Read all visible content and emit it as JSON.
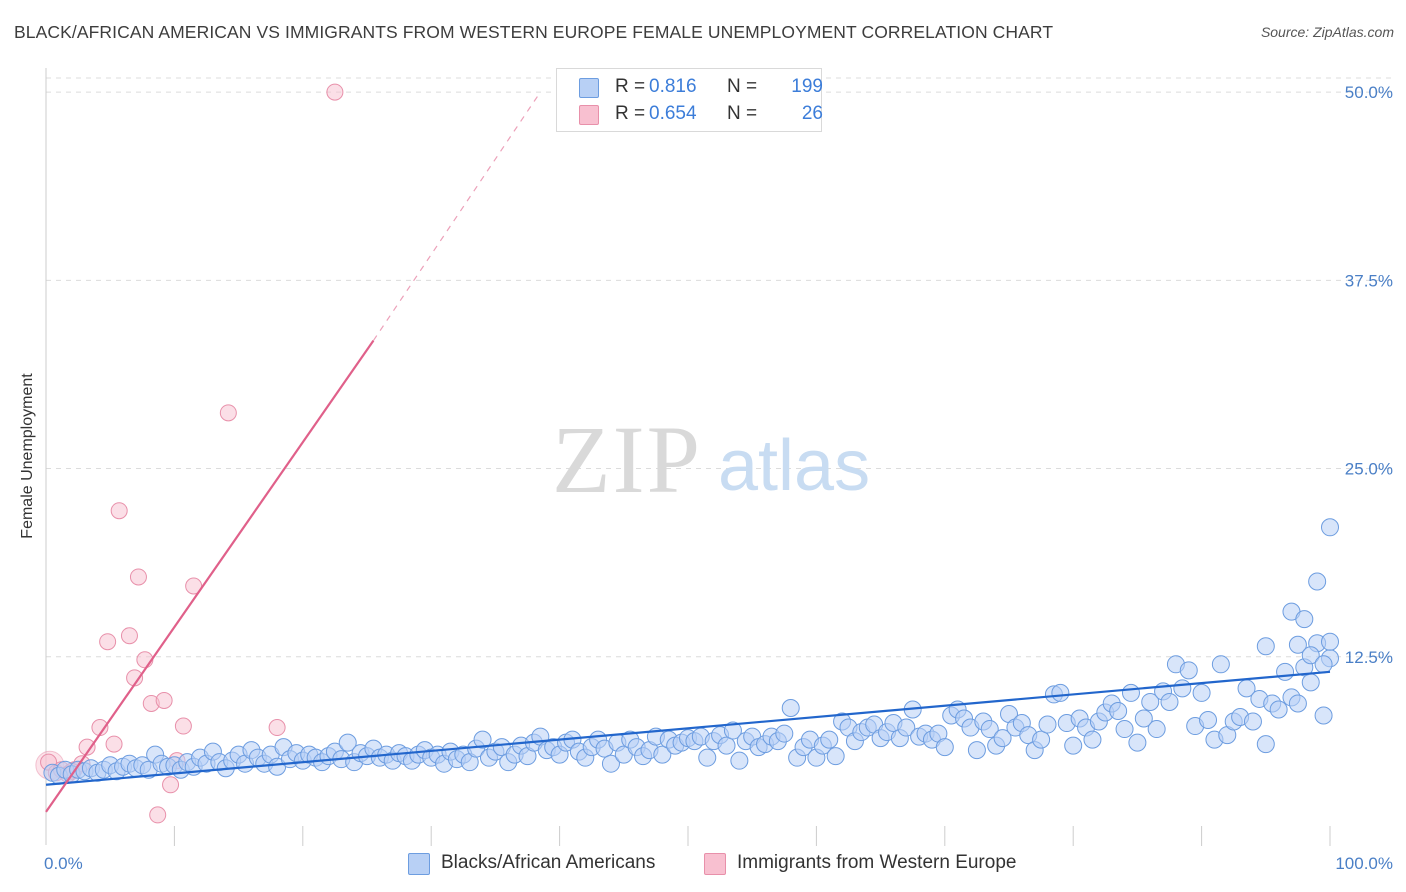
{
  "header": {
    "title": "BLACK/AFRICAN AMERICAN VS IMMIGRANTS FROM WESTERN EUROPE FEMALE UNEMPLOYMENT CORRELATION CHART",
    "source": "Source: ZipAtlas.com"
  },
  "watermark": {
    "zip": "ZIP",
    "atlas": "atlas"
  },
  "legend": {
    "series1": {
      "r_label": "R =",
      "r_value": "0.816",
      "n_label": "N =",
      "n_value": "199"
    },
    "series2": {
      "r_label": "R =",
      "r_value": "0.654",
      "n_label": "N =",
      "n_value": "26"
    }
  },
  "bottom_legend": {
    "series1": "Blacks/African Americans",
    "series2": "Immigrants from Western Europe"
  },
  "colors": {
    "blue_fill": "#b8d0f5",
    "blue_stroke": "#6d9de0",
    "blue_line": "#2266cc",
    "pink_fill": "#f8c0d0",
    "pink_stroke": "#e890aa",
    "pink_line": "#e0608a",
    "tick_text": "#4a7fc6",
    "grid": "#dcdcdc"
  },
  "chart_data": {
    "type": "scatter",
    "title": "BLACK/AFRICAN AMERICAN VS IMMIGRANTS FROM WESTERN EUROPE FEMALE UNEMPLOYMENT CORRELATION CHART",
    "xlabel": "",
    "ylabel": "Female Unemployment",
    "xlim": [
      0,
      100
    ],
    "ylim": [
      0,
      52
    ],
    "x_tick_labels": [
      "0.0%",
      "100.0%"
    ],
    "y_ticks": [
      12.5,
      25.0,
      37.5,
      50.0
    ],
    "y_tick_labels": [
      "12.5%",
      "25.0%",
      "37.5%",
      "50.0%"
    ],
    "grid": true,
    "series": [
      {
        "name": "Blacks/African Americans",
        "color": "#6d9de0",
        "R": 0.816,
        "N": 199,
        "trend": {
          "x": [
            0,
            100
          ],
          "y": [
            4.0,
            11.5
          ]
        },
        "points": [
          [
            0.5,
            4.8
          ],
          [
            1,
            4.6
          ],
          [
            1.5,
            5.0
          ],
          [
            2,
            4.7
          ],
          [
            2.5,
            5.0
          ],
          [
            3,
            4.9
          ],
          [
            3.5,
            5.1
          ],
          [
            4,
            4.8
          ],
          [
            4.5,
            5.0
          ],
          [
            5,
            5.3
          ],
          [
            5.5,
            4.9
          ],
          [
            6,
            5.2
          ],
          [
            6.5,
            5.4
          ],
          [
            7,
            5.1
          ],
          [
            7.5,
            5.3
          ],
          [
            8,
            5.0
          ],
          [
            8.5,
            6.0
          ],
          [
            9,
            5.4
          ],
          [
            9.5,
            5.2
          ],
          [
            10,
            5.3
          ],
          [
            10.5,
            5.0
          ],
          [
            11,
            5.5
          ],
          [
            11.5,
            5.2
          ],
          [
            12,
            5.8
          ],
          [
            12.5,
            5.4
          ],
          [
            13,
            6.2
          ],
          [
            13.5,
            5.5
          ],
          [
            14,
            5.1
          ],
          [
            14.5,
            5.6
          ],
          [
            15,
            6.0
          ],
          [
            15.5,
            5.4
          ],
          [
            16,
            6.3
          ],
          [
            16.5,
            5.8
          ],
          [
            17,
            5.4
          ],
          [
            17.5,
            6.0
          ],
          [
            18,
            5.2
          ],
          [
            18.5,
            6.5
          ],
          [
            19,
            5.7
          ],
          [
            19.5,
            6.1
          ],
          [
            20,
            5.6
          ],
          [
            20.5,
            6.0
          ],
          [
            21,
            5.8
          ],
          [
            21.5,
            5.5
          ],
          [
            22,
            5.9
          ],
          [
            22.5,
            6.2
          ],
          [
            23,
            5.7
          ],
          [
            23.5,
            6.8
          ],
          [
            24,
            5.5
          ],
          [
            24.5,
            6.1
          ],
          [
            25,
            5.9
          ],
          [
            25.5,
            6.4
          ],
          [
            26,
            5.8
          ],
          [
            26.5,
            6.0
          ],
          [
            27,
            5.6
          ],
          [
            27.5,
            6.1
          ],
          [
            28,
            5.9
          ],
          [
            28.5,
            5.6
          ],
          [
            29,
            6.0
          ],
          [
            29.5,
            6.3
          ],
          [
            30,
            5.8
          ],
          [
            30.5,
            6.0
          ],
          [
            31,
            5.4
          ],
          [
            31.5,
            6.2
          ],
          [
            32,
            5.7
          ],
          [
            32.5,
            6.0
          ],
          [
            33,
            5.5
          ],
          [
            33.5,
            6.4
          ],
          [
            34,
            7.0
          ],
          [
            34.5,
            5.8
          ],
          [
            35,
            6.2
          ],
          [
            35.5,
            6.5
          ],
          [
            36,
            5.5
          ],
          [
            36.5,
            6.0
          ],
          [
            37,
            6.6
          ],
          [
            37.5,
            5.9
          ],
          [
            38,
            6.8
          ],
          [
            38.5,
            7.2
          ],
          [
            39,
            6.3
          ],
          [
            39.5,
            6.5
          ],
          [
            40,
            6.0
          ],
          [
            40.5,
            6.8
          ],
          [
            41,
            7.0
          ],
          [
            41.5,
            6.2
          ],
          [
            42,
            5.8
          ],
          [
            42.5,
            6.5
          ],
          [
            43,
            7.0
          ],
          [
            43.5,
            6.4
          ],
          [
            44,
            5.4
          ],
          [
            44.5,
            6.8
          ],
          [
            45,
            6.0
          ],
          [
            45.5,
            7.0
          ],
          [
            46,
            6.5
          ],
          [
            46.5,
            5.9
          ],
          [
            47,
            6.3
          ],
          [
            47.5,
            7.2
          ],
          [
            48,
            6.0
          ],
          [
            48.5,
            7.0
          ],
          [
            49,
            6.6
          ],
          [
            49.5,
            6.8
          ],
          [
            50,
            7.1
          ],
          [
            50.5,
            6.9
          ],
          [
            51,
            7.2
          ],
          [
            51.5,
            5.8
          ],
          [
            52,
            6.9
          ],
          [
            52.5,
            7.3
          ],
          [
            53,
            6.6
          ],
          [
            53.5,
            7.6
          ],
          [
            54,
            5.6
          ],
          [
            54.5,
            6.9
          ],
          [
            55,
            7.2
          ],
          [
            55.5,
            6.5
          ],
          [
            56,
            6.7
          ],
          [
            56.5,
            7.2
          ],
          [
            57,
            6.9
          ],
          [
            57.5,
            7.4
          ],
          [
            58,
            9.1
          ],
          [
            58.5,
            5.8
          ],
          [
            59,
            6.5
          ],
          [
            59.5,
            7.0
          ],
          [
            60,
            5.8
          ],
          [
            60.5,
            6.6
          ],
          [
            61,
            7.0
          ],
          [
            61.5,
            5.9
          ],
          [
            62,
            8.2
          ],
          [
            62.5,
            7.8
          ],
          [
            63,
            6.9
          ],
          [
            63.5,
            7.5
          ],
          [
            64,
            7.8
          ],
          [
            64.5,
            8.0
          ],
          [
            65,
            7.1
          ],
          [
            65.5,
            7.5
          ],
          [
            66,
            8.1
          ],
          [
            66.5,
            7.1
          ],
          [
            67,
            7.8
          ],
          [
            67.5,
            9.0
          ],
          [
            68,
            7.2
          ],
          [
            68.5,
            7.4
          ],
          [
            69,
            7.0
          ],
          [
            69.5,
            7.4
          ],
          [
            70,
            6.5
          ],
          [
            70.5,
            8.6
          ],
          [
            71,
            9.0
          ],
          [
            71.5,
            8.4
          ],
          [
            72,
            7.8
          ],
          [
            72.5,
            6.3
          ],
          [
            73,
            8.2
          ],
          [
            73.5,
            7.7
          ],
          [
            74,
            6.6
          ],
          [
            74.5,
            7.1
          ],
          [
            75,
            8.7
          ],
          [
            75.5,
            7.8
          ],
          [
            76,
            8.1
          ],
          [
            76.5,
            7.3
          ],
          [
            77,
            6.3
          ],
          [
            77.5,
            7.0
          ],
          [
            78,
            8.0
          ],
          [
            78.5,
            10.0
          ],
          [
            79,
            10.1
          ],
          [
            79.5,
            8.1
          ],
          [
            80,
            6.6
          ],
          [
            80.5,
            8.4
          ],
          [
            81,
            7.8
          ],
          [
            81.5,
            7.0
          ],
          [
            82,
            8.2
          ],
          [
            82.5,
            8.8
          ],
          [
            83,
            9.4
          ],
          [
            83.5,
            8.9
          ],
          [
            84,
            7.7
          ],
          [
            84.5,
            10.1
          ],
          [
            85,
            6.8
          ],
          [
            85.5,
            8.4
          ],
          [
            86,
            9.5
          ],
          [
            86.5,
            7.7
          ],
          [
            87,
            10.2
          ],
          [
            87.5,
            9.5
          ],
          [
            88,
            12.0
          ],
          [
            88.5,
            10.4
          ],
          [
            89,
            11.6
          ],
          [
            89.5,
            7.9
          ],
          [
            90,
            10.1
          ],
          [
            90.5,
            8.3
          ],
          [
            91,
            7.0
          ],
          [
            91.5,
            12.0
          ],
          [
            92,
            7.3
          ],
          [
            92.5,
            8.2
          ],
          [
            93,
            8.5
          ],
          [
            93.5,
            10.4
          ],
          [
            94,
            8.2
          ],
          [
            94.5,
            9.7
          ],
          [
            95,
            6.7
          ],
          [
            95.5,
            9.4
          ],
          [
            96,
            9.0
          ],
          [
            96.5,
            11.5
          ],
          [
            97,
            9.8
          ],
          [
            97.5,
            9.4
          ],
          [
            98,
            11.8
          ],
          [
            98.5,
            10.8
          ],
          [
            99,
            13.4
          ],
          [
            99.5,
            8.6
          ],
          [
            100,
            12.4
          ]
        ],
        "points_extra": [
          [
            95,
            13.2
          ],
          [
            97.5,
            13.3
          ],
          [
            100,
            13.5
          ],
          [
            97,
            15.5
          ],
          [
            98.5,
            12.6
          ],
          [
            99.5,
            12.0
          ],
          [
            98,
            15.0
          ],
          [
            99,
            17.5
          ],
          [
            100,
            21.1
          ]
        ]
      },
      {
        "name": "Immigrants from Western Europe",
        "color": "#e890aa",
        "R": 0.654,
        "N": 26,
        "trend": {
          "x": [
            0,
            25.5
          ],
          "y": [
            2.2,
            33.5
          ]
        },
        "trend_extended": {
          "x": [
            25.5,
            38.5
          ],
          "y": [
            33.5,
            50.0
          ]
        },
        "points": [
          [
            0.2,
            5.5
          ],
          [
            0.8,
            4.8
          ],
          [
            1.2,
            5.0
          ],
          [
            1.7,
            4.7
          ],
          [
            2.2,
            5.0
          ],
          [
            2.8,
            5.4
          ],
          [
            3.2,
            6.5
          ],
          [
            4.2,
            7.8
          ],
          [
            5.3,
            6.7
          ],
          [
            5.7,
            22.2
          ],
          [
            4.8,
            13.5
          ],
          [
            6.5,
            13.9
          ],
          [
            6.9,
            11.1
          ],
          [
            7.2,
            17.8
          ],
          [
            7.7,
            12.3
          ],
          [
            8.2,
            9.4
          ],
          [
            8.7,
            2.0
          ],
          [
            9.2,
            9.6
          ],
          [
            9.7,
            4.0
          ],
          [
            10.2,
            5.6
          ],
          [
            10.7,
            7.9
          ],
          [
            11.5,
            17.2
          ],
          [
            14.2,
            28.7
          ],
          [
            18.0,
            7.8
          ],
          [
            22.5,
            50.0
          ],
          [
            2.0,
            4.9
          ]
        ]
      }
    ]
  }
}
